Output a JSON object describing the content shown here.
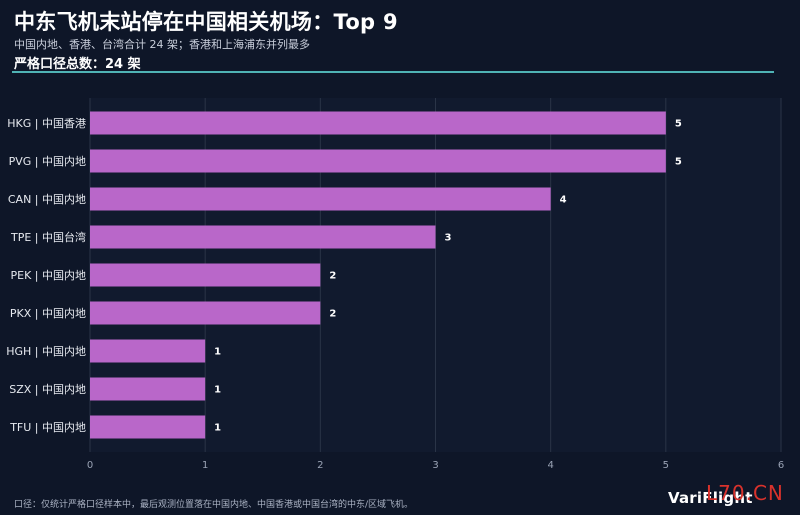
{
  "header": {
    "title": "中东飞机末站停在中国相关机场：Top 9",
    "subtitle": "中国内地、香港、台湾合计 24 架；香港和上海浦东并列最多",
    "headline": "严格口径总数：24 架"
  },
  "footer": {
    "note": "口径：仅统计严格口径样本中，最后观测位置落在中国内地、中国香港或中国台湾的中东/区域飞机。",
    "brand": "VariFlight",
    "watermark": "L70.CN"
  },
  "colors": {
    "background": "#0e1628",
    "bar": "#b967c9",
    "accent_rule": "#4fb3b5",
    "grid": "#2a3447"
  },
  "chart_data": {
    "type": "bar",
    "orientation": "horizontal",
    "categories": [
      "HKG | 中国香港",
      "PVG | 中国内地",
      "CAN | 中国内地",
      "TPE | 中国台湾",
      "PEK | 中国内地",
      "PKX | 中国内地",
      "HGH | 中国内地",
      "SZX | 中国内地",
      "TFU | 中国内地"
    ],
    "values": [
      5,
      5,
      4,
      3,
      2,
      2,
      1,
      1,
      1
    ],
    "xlim": [
      0,
      6
    ],
    "xticks": [
      "0",
      "1",
      "2",
      "3",
      "4",
      "5",
      "6"
    ],
    "grid": true,
    "data_labels": true
  }
}
